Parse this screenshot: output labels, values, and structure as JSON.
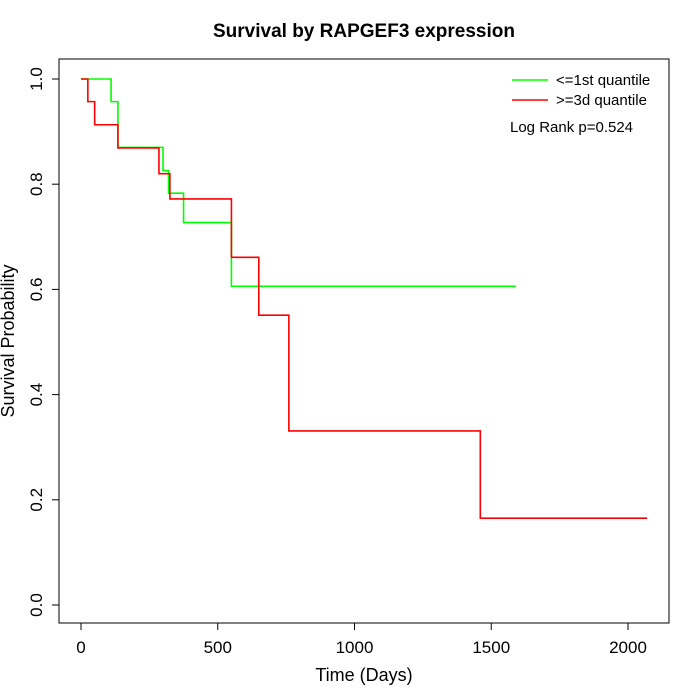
{
  "chart_data": {
    "type": "line",
    "subtype": "kaplan-meier step",
    "title": "Survival by RAPGEF3 expression",
    "xlabel": "Time (Days)",
    "ylabel": "Survival Probability",
    "xlim": [
      0,
      2100
    ],
    "ylim": [
      0,
      1.0
    ],
    "x_ticks": [
      0,
      500,
      1000,
      1500,
      2000
    ],
    "x_tick_labels": [
      "0",
      "500",
      "1000",
      "1500",
      "2000"
    ],
    "y_ticks": [
      0.0,
      0.2,
      0.4,
      0.6,
      0.8,
      1.0
    ],
    "y_tick_labels": [
      "0.0",
      "0.2",
      "0.4",
      "0.6",
      "0.8",
      "1.0"
    ],
    "grid": false,
    "legend_position": "top-right",
    "annotation": "Log Rank p=0.524",
    "series": [
      {
        "name": "<=1st quantile",
        "color": "#00FF00",
        "x": [
          0,
          110,
          135,
          300,
          320,
          375,
          550,
          1590
        ],
        "y": [
          1.0,
          0.957,
          0.87,
          0.826,
          0.783,
          0.727,
          0.606,
          0.606
        ]
      },
      {
        "name": ">=3d quantile",
        "color": "#FF0000",
        "x": [
          0,
          25,
          50,
          135,
          285,
          325,
          550,
          650,
          760,
          1460,
          2070
        ],
        "y": [
          1.0,
          0.957,
          0.913,
          0.869,
          0.82,
          0.772,
          0.661,
          0.551,
          0.331,
          0.165,
          0.165
        ]
      }
    ]
  }
}
